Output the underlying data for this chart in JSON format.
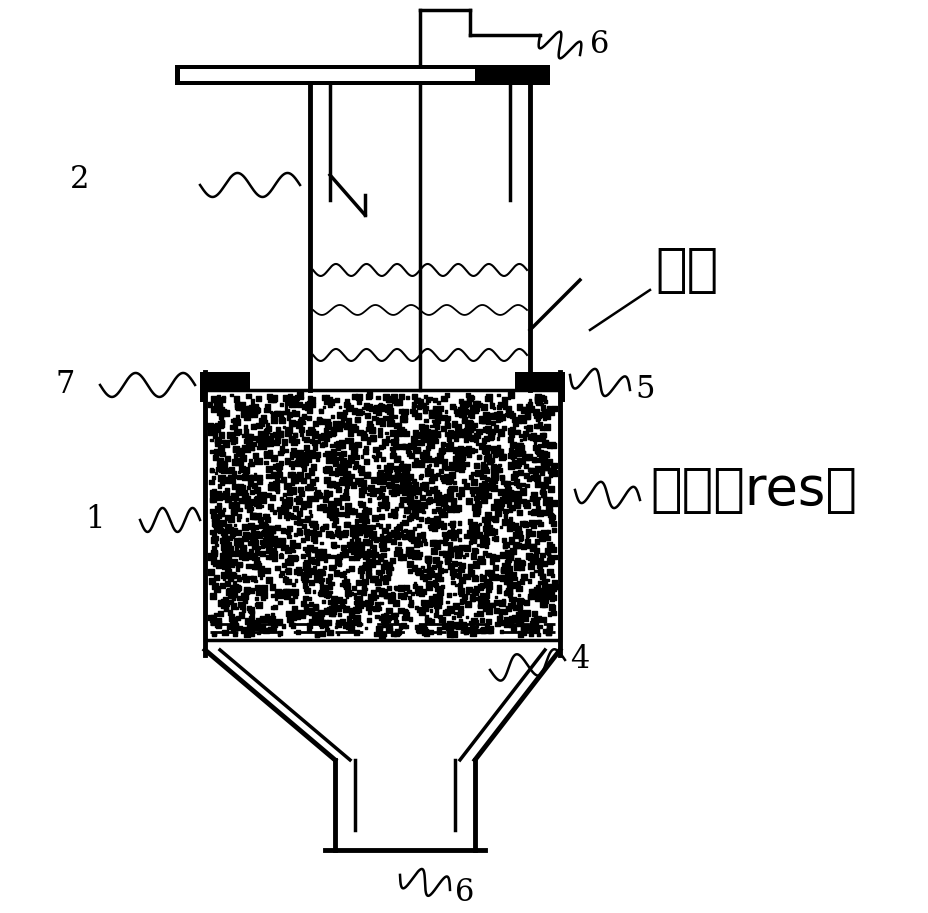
{
  "bg_color": "#ffffff",
  "line_color": "#000000",
  "figsize": [
    9.29,
    9.13
  ],
  "dpi": 100,
  "labels": {
    "6_top": "6",
    "6_bottom": "6",
    "5": "5",
    "4": "4",
    "2": "2",
    "7": "7",
    "1": "1",
    "liquid": "液体",
    "resin": "树脂（res）"
  }
}
